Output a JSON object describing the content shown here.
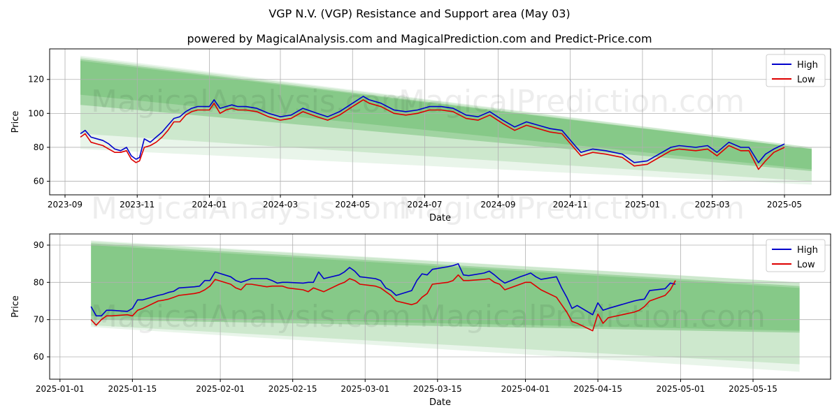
{
  "page": {
    "title": "VGP N.V. (VGP) Resistance and Support area (May 03)",
    "subtitle": "powered by MagicalAnalysis.com and MagicalPrediction.com and Predict-Price.com",
    "watermark_1": "MagicalAnalysis.com",
    "watermark_2": "MagicalPrediction.com"
  },
  "colors": {
    "high": "#0000cc",
    "low": "#dd0000",
    "band": "#4caf50",
    "grid": "#b0b0b0"
  },
  "chart_data": [
    {
      "type": "line",
      "xlabel": "Date",
      "ylabel": "Price",
      "x_ticks": [
        "2023-09",
        "2023-11",
        "2024-01",
        "2024-03",
        "2024-05",
        "2024-07",
        "2024-09",
        "2024-11",
        "2025-01",
        "2025-03",
        "2025-05"
      ],
      "y_ticks": [
        60,
        80,
        100,
        120
      ],
      "xlim": [
        "2023-08-19",
        "2025-06-09"
      ],
      "ylim": [
        52,
        138
      ],
      "grid": true,
      "legend": "top-right",
      "bands": [
        {
          "x": [
            "2023-09-14",
            "2025-05-24"
          ],
          "upper": [
            134,
            80
          ],
          "lower": [
            79,
            58
          ],
          "opacity": 0.12
        },
        {
          "x": [
            "2023-09-14",
            "2025-05-24"
          ],
          "upper": [
            133,
            80
          ],
          "lower": [
            88,
            60
          ],
          "opacity": 0.18
        },
        {
          "x": [
            "2023-09-14",
            "2025-05-24"
          ],
          "upper": [
            132,
            79
          ],
          "lower": [
            105,
            66
          ],
          "opacity": 0.35
        },
        {
          "x": [
            "2023-09-14",
            "2025-05-24"
          ],
          "upper": [
            131,
            79
          ],
          "lower": [
            111,
            67
          ],
          "opacity": 0.3
        }
      ],
      "series": [
        {
          "name": "High",
          "x": [
            "2023-09-14",
            "2023-09-18",
            "2023-09-23",
            "2023-09-28",
            "2023-10-03",
            "2023-10-08",
            "2023-10-13",
            "2023-10-18",
            "2023-10-23",
            "2023-10-27",
            "2023-10-31",
            "2023-11-03",
            "2023-11-07",
            "2023-11-12",
            "2023-11-17",
            "2023-11-22",
            "2023-11-27",
            "2023-12-02",
            "2023-12-07",
            "2023-12-12",
            "2023-12-17",
            "2023-12-22",
            "2023-12-27",
            "2024-01-01",
            "2024-01-05",
            "2024-01-10",
            "2024-01-15",
            "2024-01-20",
            "2024-01-25",
            "2024-02-01",
            "2024-02-10",
            "2024-02-20",
            "2024-03-01",
            "2024-03-10",
            "2024-03-20",
            "2024-04-01",
            "2024-04-10",
            "2024-04-20",
            "2024-05-01",
            "2024-05-10",
            "2024-05-15",
            "2024-05-25",
            "2024-06-05",
            "2024-06-15",
            "2024-06-25",
            "2024-07-05",
            "2024-07-15",
            "2024-07-25",
            "2024-08-05",
            "2024-08-15",
            "2024-08-25",
            "2024-09-05",
            "2024-09-15",
            "2024-09-25",
            "2024-10-05",
            "2024-10-15",
            "2024-10-25",
            "2024-11-05",
            "2024-11-10",
            "2024-11-20",
            "2024-12-01",
            "2024-12-15",
            "2024-12-25",
            "2025-01-05",
            "2025-01-15",
            "2025-01-25",
            "2025-02-01",
            "2025-02-15",
            "2025-02-25",
            "2025-03-05",
            "2025-03-15",
            "2025-03-25",
            "2025-04-01",
            "2025-04-09",
            "2025-04-15",
            "2025-04-22",
            "2025-05-01"
          ],
          "values": [
            88,
            90,
            86,
            85,
            84,
            82,
            79,
            78,
            80,
            75,
            73,
            74,
            85,
            83,
            86,
            89,
            93,
            97,
            98,
            101,
            103,
            104,
            104,
            104,
            108,
            103,
            104,
            105,
            104,
            104,
            103,
            100,
            98,
            99,
            103,
            100,
            98,
            101,
            106,
            110,
            108,
            106,
            102,
            101,
            102,
            104,
            104,
            103,
            99,
            98,
            101,
            96,
            92,
            95,
            93,
            91,
            90,
            81,
            77,
            79,
            78,
            76,
            71,
            72,
            76,
            80,
            81,
            80,
            81,
            77,
            83,
            80,
            80,
            71,
            76,
            79,
            82
          ]
        },
        {
          "name": "Low",
          "x": [
            "2023-09-14",
            "2023-09-18",
            "2023-09-23",
            "2023-09-28",
            "2023-10-03",
            "2023-10-08",
            "2023-10-13",
            "2023-10-18",
            "2023-10-23",
            "2023-10-27",
            "2023-10-31",
            "2023-11-03",
            "2023-11-07",
            "2023-11-12",
            "2023-11-17",
            "2023-11-22",
            "2023-11-27",
            "2023-12-02",
            "2023-12-07",
            "2023-12-12",
            "2023-12-17",
            "2023-12-22",
            "2023-12-27",
            "2024-01-01",
            "2024-01-05",
            "2024-01-10",
            "2024-01-15",
            "2024-01-20",
            "2024-01-25",
            "2024-02-01",
            "2024-02-10",
            "2024-02-20",
            "2024-03-01",
            "2024-03-10",
            "2024-03-20",
            "2024-04-01",
            "2024-04-10",
            "2024-04-20",
            "2024-05-01",
            "2024-05-10",
            "2024-05-15",
            "2024-05-25",
            "2024-06-05",
            "2024-06-15",
            "2024-06-25",
            "2024-07-05",
            "2024-07-15",
            "2024-07-25",
            "2024-08-05",
            "2024-08-15",
            "2024-08-25",
            "2024-09-05",
            "2024-09-15",
            "2024-09-25",
            "2024-10-05",
            "2024-10-15",
            "2024-10-25",
            "2024-11-05",
            "2024-11-10",
            "2024-11-20",
            "2024-12-01",
            "2024-12-15",
            "2024-12-25",
            "2025-01-05",
            "2025-01-15",
            "2025-01-25",
            "2025-02-01",
            "2025-02-15",
            "2025-02-25",
            "2025-03-05",
            "2025-03-15",
            "2025-03-25",
            "2025-04-01",
            "2025-04-09",
            "2025-04-15",
            "2025-04-22",
            "2025-05-01"
          ],
          "values": [
            86,
            88,
            83,
            82,
            81,
            79,
            77,
            77,
            78,
            73,
            71,
            72,
            80,
            81,
            83,
            86,
            90,
            95,
            95,
            99,
            101,
            102,
            102,
            102,
            106,
            100,
            102,
            103,
            102,
            102,
            101,
            98,
            96,
            97,
            101,
            98,
            96,
            99,
            104,
            108,
            106,
            104,
            100,
            99,
            100,
            102,
            102,
            101,
            97,
            96,
            99,
            94,
            90,
            93,
            91,
            89,
            88,
            79,
            75,
            77,
            76,
            74,
            69,
            70,
            74,
            78,
            79,
            78,
            79,
            75,
            81,
            78,
            78,
            67,
            72,
            77,
            80
          ]
        }
      ]
    },
    {
      "type": "line",
      "xlabel": "Date",
      "ylabel": "Price",
      "x_ticks": [
        "2025-01-01",
        "2025-01-15",
        "2025-02-01",
        "2025-02-15",
        "2025-03-01",
        "2025-03-15",
        "2025-04-01",
        "2025-04-15",
        "2025-05-01",
        "2025-05-15"
      ],
      "y_ticks": [
        60,
        70,
        80,
        90
      ],
      "xlim": [
        "2024-12-30",
        "2025-05-30"
      ],
      "ylim": [
        54,
        93
      ],
      "grid": true,
      "legend": "top-right",
      "bands": [
        {
          "x": [
            "2025-01-07",
            "2025-05-24"
          ],
          "upper": [
            91.3,
            80
          ],
          "lower": [
            68,
            56
          ],
          "opacity": 0.12
        },
        {
          "x": [
            "2025-01-07",
            "2025-05-24"
          ],
          "upper": [
            91,
            80
          ],
          "lower": [
            68.5,
            58
          ],
          "opacity": 0.18
        },
        {
          "x": [
            "2025-01-07",
            "2025-05-24"
          ],
          "upper": [
            90.5,
            79
          ],
          "lower": [
            70,
            66.5
          ],
          "opacity": 0.35
        },
        {
          "x": [
            "2025-01-07",
            "2025-05-24"
          ],
          "upper": [
            90,
            78.5
          ],
          "lower": [
            71,
            67
          ],
          "opacity": 0.3
        }
      ],
      "series": [
        {
          "name": "High",
          "x": [
            "2025-01-07",
            "2025-01-08",
            "2025-01-09",
            "2025-01-10",
            "2025-01-11",
            "2025-01-14",
            "2025-01-15",
            "2025-01-16",
            "2025-01-17",
            "2025-01-20",
            "2025-01-21",
            "2025-01-22",
            "2025-01-23",
            "2025-01-24",
            "2025-01-27",
            "2025-01-28",
            "2025-01-29",
            "2025-01-30",
            "2025-01-31",
            "2025-02-03",
            "2025-02-04",
            "2025-02-05",
            "2025-02-06",
            "2025-02-07",
            "2025-02-10",
            "2025-02-11",
            "2025-02-12",
            "2025-02-13",
            "2025-02-14",
            "2025-02-17",
            "2025-02-18",
            "2025-02-19",
            "2025-02-20",
            "2025-02-21",
            "2025-02-24",
            "2025-02-25",
            "2025-02-26",
            "2025-02-27",
            "2025-02-28",
            "2025-03-03",
            "2025-03-04",
            "2025-03-05",
            "2025-03-06",
            "2025-03-07",
            "2025-03-10",
            "2025-03-11",
            "2025-03-12",
            "2025-03-13",
            "2025-03-14",
            "2025-03-17",
            "2025-03-18",
            "2025-03-19",
            "2025-03-20",
            "2025-03-21",
            "2025-03-24",
            "2025-03-25",
            "2025-03-26",
            "2025-03-27",
            "2025-03-28",
            "2025-03-31",
            "2025-04-01",
            "2025-04-02",
            "2025-04-03",
            "2025-04-04",
            "2025-04-07",
            "2025-04-08",
            "2025-04-09",
            "2025-04-10",
            "2025-04-11",
            "2025-04-14",
            "2025-04-15",
            "2025-04-16",
            "2025-04-17",
            "2025-04-22",
            "2025-04-23",
            "2025-04-24",
            "2025-04-25",
            "2025-04-28",
            "2025-04-29",
            "2025-04-30"
          ],
          "values": [
            73.5,
            71,
            71,
            72.5,
            72.5,
            72.2,
            73,
            75.3,
            75.3,
            76.5,
            76.8,
            77.3,
            77.6,
            78.5,
            78.8,
            79,
            80.5,
            80.5,
            82.8,
            81.5,
            80.5,
            80,
            80.5,
            81,
            81,
            80.5,
            79.8,
            80,
            80,
            79.8,
            80,
            80,
            82.8,
            81,
            82,
            82.8,
            84,
            83,
            81.5,
            81,
            80.5,
            78.5,
            77.8,
            76.5,
            77.8,
            80.5,
            82.3,
            82,
            83.5,
            84.2,
            84.5,
            85,
            82,
            81.8,
            82.5,
            83,
            82,
            80.8,
            79.8,
            81.5,
            82,
            82.5,
            81.5,
            80.8,
            81.5,
            78.5,
            76,
            73,
            73.8,
            71.3,
            74.5,
            72.5,
            73,
            75,
            75.3,
            75.5,
            77.8,
            78.3,
            79.8,
            79.5
          ]
        },
        {
          "name": "Low",
          "x": [
            "2025-01-07",
            "2025-01-08",
            "2025-01-09",
            "2025-01-10",
            "2025-01-11",
            "2025-01-14",
            "2025-01-15",
            "2025-01-16",
            "2025-01-17",
            "2025-01-20",
            "2025-01-21",
            "2025-01-22",
            "2025-01-23",
            "2025-01-24",
            "2025-01-27",
            "2025-01-28",
            "2025-01-29",
            "2025-01-30",
            "2025-01-31",
            "2025-02-03",
            "2025-02-04",
            "2025-02-05",
            "2025-02-06",
            "2025-02-07",
            "2025-02-10",
            "2025-02-11",
            "2025-02-12",
            "2025-02-13",
            "2025-02-14",
            "2025-02-17",
            "2025-02-18",
            "2025-02-19",
            "2025-02-20",
            "2025-02-21",
            "2025-02-24",
            "2025-02-25",
            "2025-02-26",
            "2025-02-27",
            "2025-02-28",
            "2025-03-03",
            "2025-03-04",
            "2025-03-05",
            "2025-03-06",
            "2025-03-07",
            "2025-03-10",
            "2025-03-11",
            "2025-03-12",
            "2025-03-13",
            "2025-03-14",
            "2025-03-17",
            "2025-03-18",
            "2025-03-19",
            "2025-03-20",
            "2025-03-21",
            "2025-03-24",
            "2025-03-25",
            "2025-03-26",
            "2025-03-27",
            "2025-03-28",
            "2025-03-31",
            "2025-04-01",
            "2025-04-02",
            "2025-04-03",
            "2025-04-04",
            "2025-04-07",
            "2025-04-08",
            "2025-04-09",
            "2025-04-10",
            "2025-04-11",
            "2025-04-14",
            "2025-04-15",
            "2025-04-16",
            "2025-04-17",
            "2025-04-22",
            "2025-04-23",
            "2025-04-24",
            "2025-04-25",
            "2025-04-28",
            "2025-04-29",
            "2025-04-30"
          ],
          "values": [
            70,
            68.5,
            70,
            71,
            71,
            71.3,
            71,
            72.5,
            73,
            75,
            75.2,
            75.5,
            76,
            76.5,
            77,
            77.3,
            78,
            79,
            80.8,
            79.5,
            78.5,
            78,
            79.5,
            79.5,
            78.8,
            79,
            79,
            79,
            78.5,
            78,
            77.5,
            78.5,
            78,
            77.5,
            79.5,
            80,
            81,
            80.5,
            79.5,
            79,
            78.5,
            77.5,
            76.5,
            75,
            74,
            74.5,
            76,
            77,
            79.5,
            80,
            80.5,
            82,
            80.5,
            80.5,
            80.8,
            81,
            80,
            79.5,
            78,
            79.5,
            80,
            80,
            79,
            78,
            76,
            74,
            72,
            69.5,
            69,
            67,
            71.5,
            69,
            70.5,
            72,
            72.5,
            73.5,
            75,
            76.5,
            78,
            80.5
          ]
        }
      ]
    }
  ]
}
